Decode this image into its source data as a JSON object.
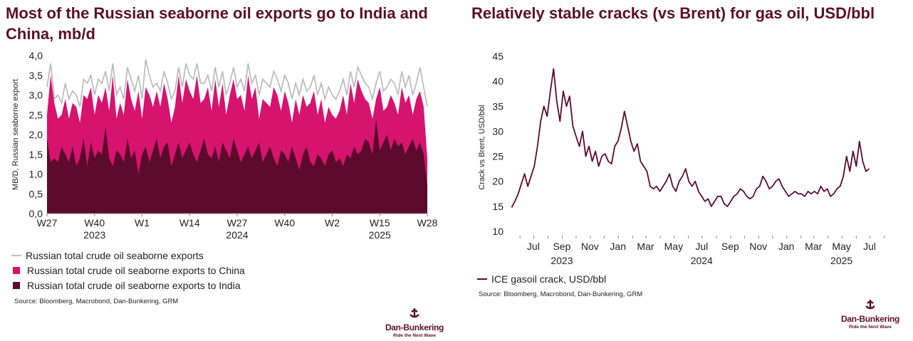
{
  "colors": {
    "total": "#bdbdbd",
    "china": "#d6136e",
    "india": "#5c0a2c",
    "crack": "#5c0a2c",
    "brand": "#5c0f2a"
  },
  "left": {
    "title": "Most of the Russian seaborne oil exports go to India and China, mb/d",
    "legend": [
      "Russian total crude oil seaborne exports",
      "Russian total crude oil seaborne exports to China",
      "Russian total crude oil seaborne exports to India"
    ],
    "source": "Source: Bloomberg, Macrobond, Dan-Bunkering, GRM"
  },
  "right": {
    "title": "Relatively stable cracks (vs Brent) for gas oil, USD/bbl",
    "legend": "ICE gasoil crack, USD/bbl",
    "source": "Source: Bloomberg, Macrobond, Dan-Bunkering, GRM"
  },
  "logo": {
    "name": "Dan-Bunkering",
    "tagline": "Ride the Next Wave"
  },
  "chart_data": [
    {
      "type": "area",
      "title": "Most of the Russian seaborne oil exports go to India and China, mb/d",
      "ylabel": "MB/D, Russian seaborne export",
      "ylim": [
        0,
        4
      ],
      "yticks": [
        "0,0",
        "0,5",
        "1,0",
        "1,5",
        "2,0",
        "2,5",
        "3,0",
        "3,5",
        "4,0"
      ],
      "xlabels": [
        {
          "week": 0,
          "label": "W27",
          "year": ""
        },
        {
          "week": 13,
          "label": "W40",
          "year": "2023"
        },
        {
          "week": 26,
          "label": "W1",
          "year": ""
        },
        {
          "week": 39,
          "label": "W14",
          "year": ""
        },
        {
          "week": 52,
          "label": "W27",
          "year": "2024"
        },
        {
          "week": 65,
          "label": "W40",
          "year": ""
        },
        {
          "week": 78,
          "label": "W2",
          "year": ""
        },
        {
          "week": 91,
          "label": "W15",
          "year": "2025"
        },
        {
          "week": 104,
          "label": "W28",
          "year": ""
        }
      ],
      "series": [
        {
          "name": "Russian total crude oil seaborne exports",
          "values": [
            3.2,
            3.8,
            2.9,
            3.0,
            2.8,
            3.3,
            2.9,
            3.1,
            3.0,
            2.7,
            3.4,
            3.3,
            3.5,
            3.0,
            3.4,
            3.3,
            3.6,
            3.1,
            3.8,
            3.0,
            3.2,
            2.9,
            3.7,
            3.4,
            3.1,
            3.5,
            2.9,
            3.9,
            3.5,
            3.2,
            3.3,
            3.1,
            3.6,
            3.3,
            2.9,
            3.1,
            3.7,
            3.2,
            3.8,
            3.5,
            3.4,
            3.8,
            3.3,
            3.3,
            3.5,
            3.1,
            3.7,
            3.2,
            3.6,
            3.0,
            3.3,
            3.7,
            3.2,
            3.4,
            3.1,
            3.8,
            3.3,
            3.5,
            3.0,
            3.4,
            3.3,
            3.2,
            3.6,
            3.4,
            3.1,
            3.5,
            3.3,
            2.9,
            3.3,
            3.0,
            3.4,
            3.1,
            3.2,
            3.5,
            3.0,
            3.3,
            2.9,
            3.2,
            3.0,
            2.9,
            3.1,
            3.4,
            3.0,
            3.6,
            3.2,
            3.7,
            3.5,
            3.3,
            3.2,
            2.9,
            3.3,
            3.6,
            3.1,
            3.2,
            3.4,
            3.3,
            3.0,
            3.6,
            3.2,
            3.5,
            3.0,
            3.3,
            3.7,
            3.2,
            2.7
          ]
        },
        {
          "name": "Russian total crude oil seaborne exports to China",
          "values": [
            2.5,
            3.5,
            2.8,
            2.4,
            2.5,
            2.9,
            2.4,
            2.8,
            2.7,
            2.3,
            3.0,
            2.9,
            3.2,
            2.5,
            3.0,
            2.8,
            3.2,
            2.6,
            3.5,
            2.4,
            2.8,
            2.5,
            3.4,
            2.9,
            2.6,
            3.1,
            2.4,
            3.2,
            3.0,
            2.7,
            3.1,
            2.7,
            3.3,
            2.9,
            2.3,
            2.7,
            3.5,
            2.8,
            3.4,
            3.1,
            2.9,
            3.5,
            2.8,
            2.9,
            3.2,
            2.6,
            3.4,
            2.7,
            3.3,
            2.5,
            3.0,
            3.4,
            2.9,
            3.0,
            2.6,
            3.5,
            2.9,
            3.2,
            2.4,
            2.9,
            2.8,
            2.7,
            3.2,
            3.0,
            2.6,
            3.1,
            2.8,
            2.3,
            2.9,
            2.5,
            3.0,
            2.7,
            2.8,
            3.1,
            2.5,
            2.9,
            2.3,
            2.7,
            2.5,
            2.4,
            2.6,
            3.0,
            2.5,
            3.3,
            2.8,
            3.4,
            3.1,
            2.9,
            2.8,
            2.4,
            2.9,
            3.2,
            2.6,
            2.7,
            3.0,
            2.8,
            2.5,
            3.2,
            2.8,
            3.0,
            2.5,
            2.9,
            3.1,
            2.7,
            1.4
          ]
        },
        {
          "name": "Russian total crude oil seaborne exports to India",
          "values": [
            1.9,
            1.3,
            1.4,
            1.3,
            1.7,
            1.5,
            1.3,
            1.7,
            1.2,
            1.4,
            1.9,
            1.2,
            1.8,
            1.4,
            1.6,
            1.5,
            2.2,
            1.4,
            1.2,
            1.6,
            1.5,
            1.3,
            1.9,
            1.4,
            1.6,
            1.0,
            1.5,
            1.7,
            1.3,
            1.6,
            1.9,
            1.4,
            1.7,
            1.8,
            1.2,
            1.5,
            1.8,
            1.4,
            1.6,
            1.8,
            1.5,
            1.3,
            1.6,
            1.9,
            1.5,
            1.4,
            1.7,
            1.3,
            1.8,
            1.6,
            1.4,
            1.9,
            1.6,
            1.3,
            1.5,
            1.7,
            1.4,
            1.6,
            1.8,
            1.3,
            1.5,
            1.7,
            1.4,
            1.2,
            1.6,
            1.5,
            1.3,
            1.7,
            1.4,
            1.1,
            1.5,
            1.7,
            1.3,
            1.2,
            1.5,
            1.4,
            1.2,
            1.5,
            1.6,
            1.3,
            1.4,
            1.2,
            1.5,
            1.4,
            1.7,
            1.5,
            1.6,
            1.9,
            1.8,
            1.5,
            2.4,
            1.6,
            1.8,
            2.0,
            1.6,
            1.9,
            1.7,
            1.8,
            1.5,
            1.7,
            1.9,
            1.6,
            1.8,
            1.5,
            0.7
          ]
        }
      ]
    },
    {
      "type": "line",
      "title": "Relatively stable cracks (vs Brent) for gas oil, USD/bbl",
      "ylabel": "Crack vs Brent, USD/bbl",
      "ylim": [
        10,
        45
      ],
      "yticks": [
        10,
        15,
        20,
        25,
        30,
        35,
        40,
        45
      ],
      "x_start": "2023-05-29",
      "x_step_days": 7,
      "xlabels": [
        {
          "month": "2023-07",
          "label": "Jul",
          "year": ""
        },
        {
          "month": "2023-09",
          "label": "Sep",
          "year": "2023"
        },
        {
          "month": "2023-11",
          "label": "Nov",
          "year": ""
        },
        {
          "month": "2024-01",
          "label": "Jan",
          "year": ""
        },
        {
          "month": "2024-03",
          "label": "Mar",
          "year": ""
        },
        {
          "month": "2024-05",
          "label": "May",
          "year": ""
        },
        {
          "month": "2024-07",
          "label": "Jul",
          "year": "2024"
        },
        {
          "month": "2024-09",
          "label": "Sep",
          "year": ""
        },
        {
          "month": "2024-11",
          "label": "Nov",
          "year": ""
        },
        {
          "month": "2025-01",
          "label": "Jan",
          "year": ""
        },
        {
          "month": "2025-03",
          "label": "Mar",
          "year": ""
        },
        {
          "month": "2025-05",
          "label": "May",
          "year": "2025"
        },
        {
          "month": "2025-07",
          "label": "Jul",
          "year": ""
        }
      ],
      "series": [
        {
          "name": "ICE gasoil crack, USD/bbl",
          "values": [
            14.8,
            16.0,
            17.5,
            19.5,
            21.5,
            19.0,
            21.0,
            23.0,
            27.0,
            32.0,
            35.0,
            33.0,
            38.0,
            42.5,
            36.0,
            32.0,
            38.0,
            35.0,
            37.0,
            31.0,
            29.0,
            27.0,
            30.0,
            25.0,
            27.0,
            24.0,
            26.0,
            23.0,
            25.0,
            25.5,
            24.0,
            23.5,
            27.0,
            28.0,
            30.5,
            34.0,
            31.0,
            28.0,
            26.0,
            27.5,
            24.0,
            23.0,
            22.0,
            19.0,
            18.5,
            19.0,
            18.0,
            19.0,
            20.0,
            21.5,
            19.0,
            18.0,
            20.0,
            21.0,
            22.5,
            20.0,
            19.0,
            20.0,
            18.0,
            17.0,
            16.0,
            16.5,
            15.0,
            16.0,
            17.0,
            17.0,
            15.5,
            15.0,
            16.0,
            17.0,
            17.5,
            18.5,
            18.0,
            17.0,
            16.5,
            17.0,
            18.5,
            19.0,
            21.0,
            20.0,
            18.5,
            19.0,
            20.0,
            20.5,
            19.0,
            18.0,
            17.0,
            17.5,
            18.0,
            17.5,
            17.5,
            17.0,
            18.0,
            17.5,
            18.0,
            17.5,
            19.0,
            18.0,
            18.5,
            17.0,
            17.5,
            18.5,
            19.0,
            21.0,
            25.0,
            22.0,
            26.0,
            23.0,
            28.0,
            24.0,
            22.0,
            22.5
          ]
        }
      ]
    }
  ]
}
